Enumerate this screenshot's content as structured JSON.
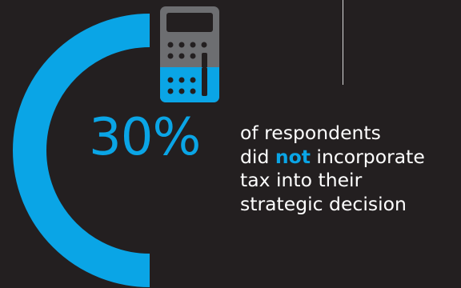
{
  "stat": {
    "percent": "30%",
    "share": 0.3,
    "line1": "of respondents",
    "line2_before": "did ",
    "line2_emphasis": "not",
    "line2_after": " incorporate",
    "line3": "tax into their",
    "line4": "strategic decision"
  },
  "icon": {
    "name": "calculator-icon"
  },
  "colors": {
    "background": "#231f20",
    "accent": "#0aa5e6",
    "icon_gray": "#6d6e71",
    "text": "#ffffff",
    "divider": "#d9d9d9"
  }
}
